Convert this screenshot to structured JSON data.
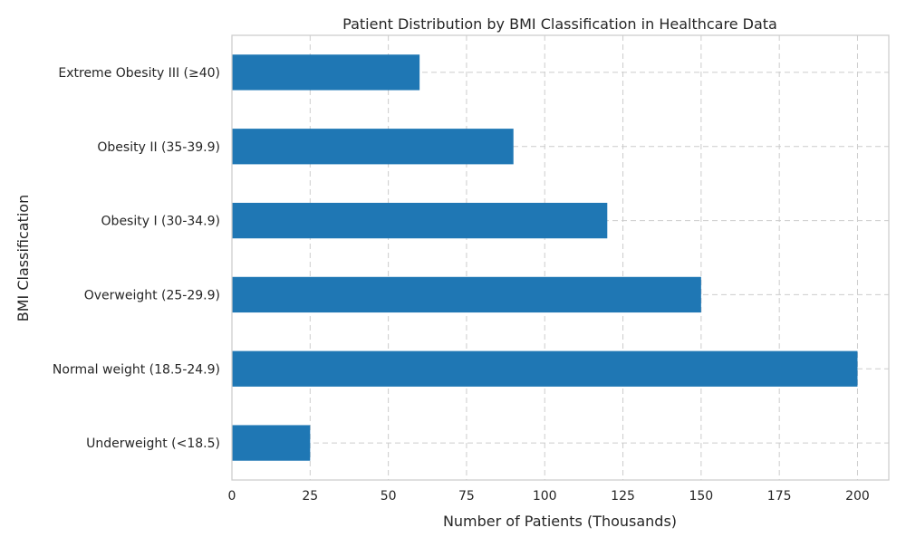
{
  "chart_data": {
    "type": "bar",
    "orientation": "horizontal",
    "title": "Patient Distribution by BMI Classification in Healthcare Data",
    "xlabel": "Number of Patients (Thousands)",
    "ylabel": "BMI Classification",
    "categories": [
      "Underweight (<18.5)",
      "Normal weight (18.5-24.9)",
      "Overweight (25-29.9)",
      "Obesity I (30-34.9)",
      "Obesity II (35-39.9)",
      "Extreme Obesity III (≥40)"
    ],
    "values": [
      25,
      200,
      150,
      120,
      90,
      60
    ],
    "xlim": [
      0,
      210
    ],
    "xticks": [
      "0",
      "25",
      "50",
      "75",
      "100",
      "125",
      "150",
      "175",
      "200"
    ],
    "grid": true,
    "bar_color": "#1f77b4"
  }
}
